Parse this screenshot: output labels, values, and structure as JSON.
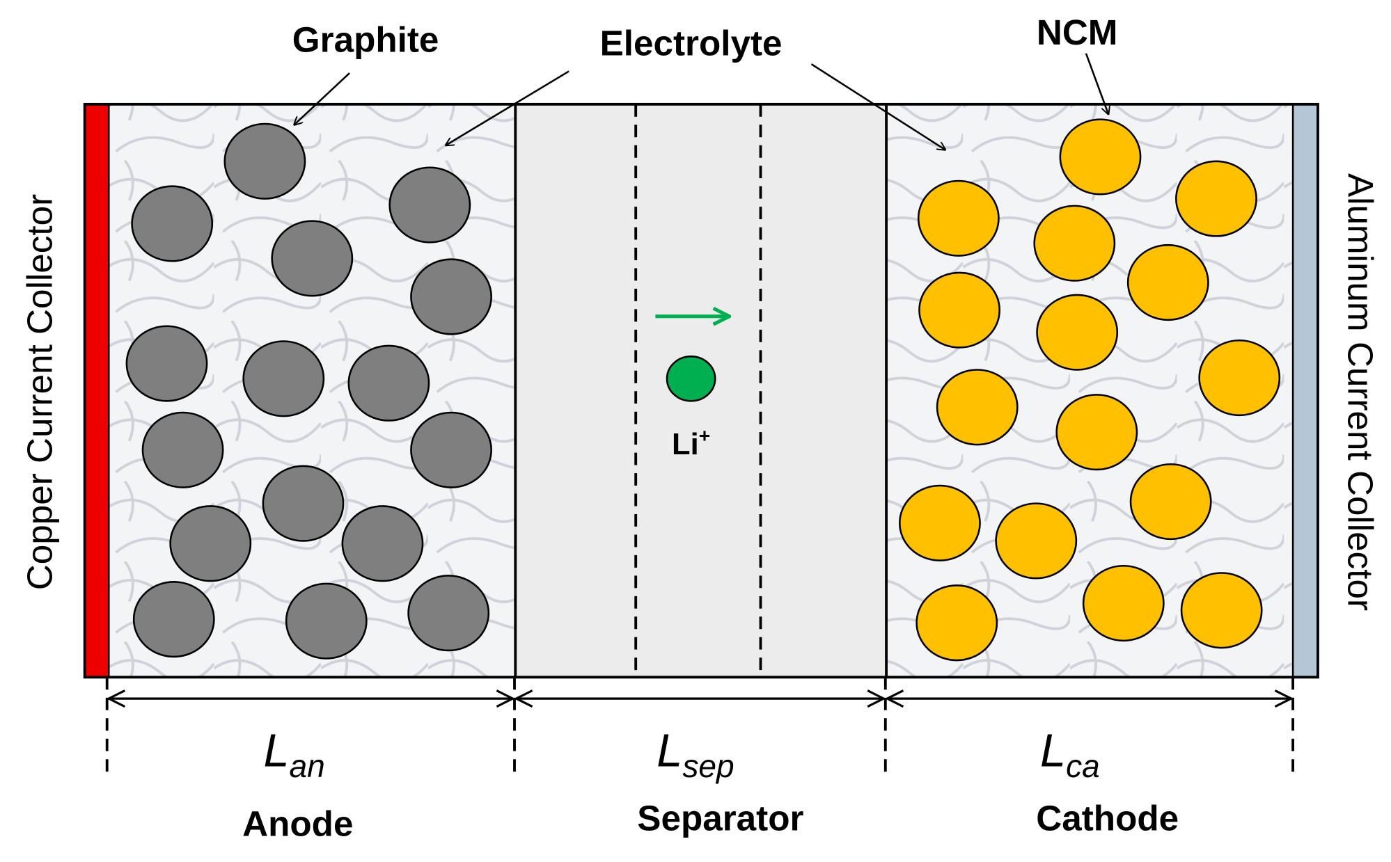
{
  "callouts": {
    "graphite": "Graphite",
    "electrolyte": "Electrolyte",
    "ncm": "NCM"
  },
  "collectors": {
    "left": "Copper Current Collector",
    "right": "Aluminum Current Collector"
  },
  "ion": {
    "text": "Li",
    "superscript": "+"
  },
  "lengths": [
    {
      "symbol": "L",
      "subscript": "an"
    },
    {
      "symbol": "L",
      "subscript": "sep"
    },
    {
      "symbol": "L",
      "subscript": "ca"
    }
  ],
  "regions": [
    "Anode",
    "Separator",
    "Cathode"
  ]
}
